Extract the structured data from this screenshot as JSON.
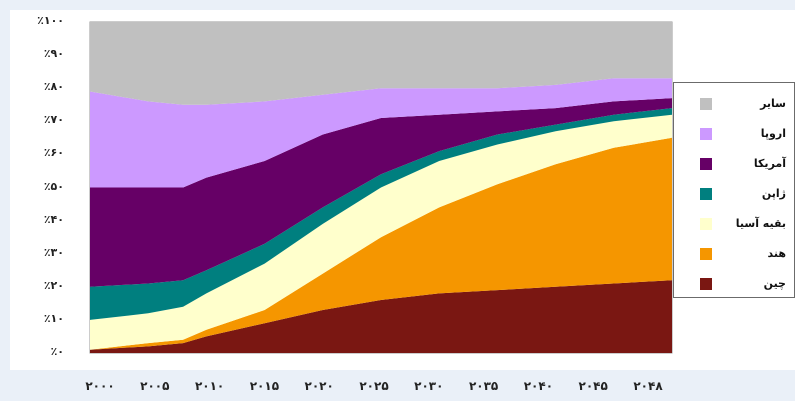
{
  "chart_data": {
    "type": "area",
    "stacked": true,
    "x": [
      2000,
      2005,
      2008,
      2010,
      2015,
      2020,
      2025,
      2030,
      2035,
      2040,
      2045,
      2050
    ],
    "xtick_labels": [
      "۲۰۰۰",
      "۲۰۰۵",
      "۲۰۱۰",
      "۲۰۱۵",
      "۲۰۲۰",
      "۲۰۲۵",
      "۲۰۳۰",
      "۲۰۳۵",
      "۲۰۴۰",
      "۲۰۴۵",
      "۲۰۴۸"
    ],
    "ytick_labels": [
      "٪۰",
      "٪۱۰",
      "٪۲۰",
      "٪۳۰",
      "٪۴۰",
      "٪۵۰",
      "٪۶۰",
      "٪۷۰",
      "٪۸۰",
      "٪۹۰",
      "٪۱۰۰"
    ],
    "ylim": [
      0,
      100
    ],
    "legend_position": "right",
    "series": [
      {
        "name": "چین",
        "color": "#7a1712",
        "values": [
          1,
          2,
          3,
          5,
          9,
          13,
          16,
          18,
          19,
          20,
          21,
          22
        ]
      },
      {
        "name": "هند",
        "color": "#f59600",
        "values": [
          0,
          1,
          1,
          2,
          4,
          11,
          19,
          26,
          32,
          37,
          41,
          43
        ]
      },
      {
        "name": "بقیه آسیا",
        "color": "#ffffcc",
        "values": [
          9,
          9,
          10,
          11,
          14,
          15,
          15,
          14,
          12,
          10,
          8,
          7
        ]
      },
      {
        "name": "ژاپن",
        "color": "#007f7f",
        "values": [
          10,
          9,
          8,
          7,
          6,
          5,
          4,
          3,
          3,
          2,
          2,
          2
        ]
      },
      {
        "name": "آمریکا",
        "color": "#660066",
        "values": [
          30,
          29,
          28,
          28,
          25,
          22,
          17,
          11,
          7,
          5,
          4,
          3
        ]
      },
      {
        "name": "اروپا",
        "color": "#cc99ff",
        "values": [
          29,
          26,
          25,
          22,
          18,
          12,
          9,
          8,
          7,
          7,
          7,
          6
        ]
      },
      {
        "name": "سایر",
        "color": "#c0c0c0",
        "values": [
          21,
          24,
          25,
          25,
          24,
          22,
          20,
          20,
          20,
          19,
          17,
          17
        ]
      }
    ]
  }
}
